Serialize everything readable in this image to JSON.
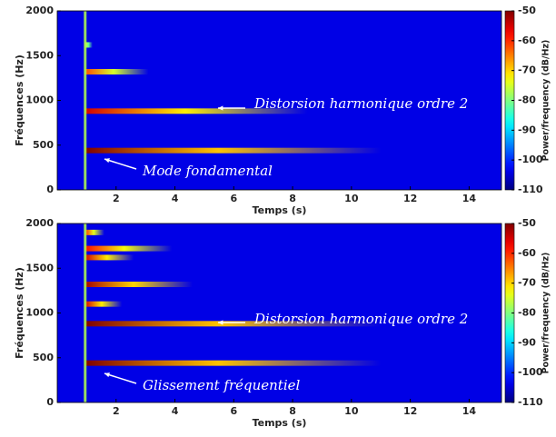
{
  "chart_data": [
    {
      "type": "spectrogram",
      "xlabel": "Temps (s)",
      "ylabel": "Fréquences (Hz)",
      "xlim": [
        0,
        15.1
      ],
      "xticks": [
        2,
        4,
        6,
        8,
        10,
        12,
        14
      ],
      "ylim": [
        0,
        2000
      ],
      "yticks": [
        0,
        500,
        1000,
        1500,
        2000
      ],
      "colorbar": {
        "label": "Power/frequency (dB/Hz)",
        "lim": [
          -110,
          -50
        ],
        "ticks": [
          -50,
          -60,
          -70,
          -80,
          -90,
          -100,
          -110
        ]
      },
      "background_level": -104,
      "onset": 0.95,
      "bands": [
        {
          "frequency": 440,
          "end": 11,
          "peak": -50
        },
        {
          "frequency": 880,
          "end": 8.5,
          "peak": -55
        },
        {
          "frequency": 1320,
          "end": 3.1,
          "peak": -62
        },
        {
          "frequency": 1620,
          "end": 1.2,
          "peak": -75
        }
      ],
      "annotations": [
        {
          "text": "Distorsion harmonique ordre 2"
        },
        {
          "text": "Mode fondamental"
        }
      ]
    },
    {
      "type": "spectrogram",
      "xlabel": "Temps (s)",
      "ylabel": "Fréquences (Hz)",
      "xlim": [
        0,
        15.1
      ],
      "xticks": [
        2,
        4,
        6,
        8,
        10,
        12,
        14
      ],
      "ylim": [
        0,
        2000
      ],
      "yticks": [
        0,
        500,
        1000,
        1500,
        2000
      ],
      "colorbar": {
        "label": "Power/frequency (dB/Hz)",
        "lim": [
          -110,
          -50
        ],
        "ticks": [
          -50,
          -60,
          -70,
          -80,
          -90,
          -100,
          -110
        ]
      },
      "background_level": -104,
      "onset": 0.95,
      "bands": [
        {
          "frequency": 440,
          "end": 11,
          "peak": -50
        },
        {
          "frequency": 880,
          "end": 11,
          "peak": -50
        },
        {
          "frequency": 1100,
          "end": 2.2,
          "peak": -55
        },
        {
          "frequency": 1320,
          "end": 4.6,
          "peak": -52
        },
        {
          "frequency": 1620,
          "end": 2.6,
          "peak": -55
        },
        {
          "frequency": 1720,
          "end": 3.9,
          "peak": -58
        },
        {
          "frequency": 1900,
          "end": 1.6,
          "peak": -60
        }
      ],
      "annotations": [
        {
          "text": "Distorsion harmonique ordre 2"
        },
        {
          "text": "Glissement fréquentiel"
        }
      ]
    }
  ]
}
